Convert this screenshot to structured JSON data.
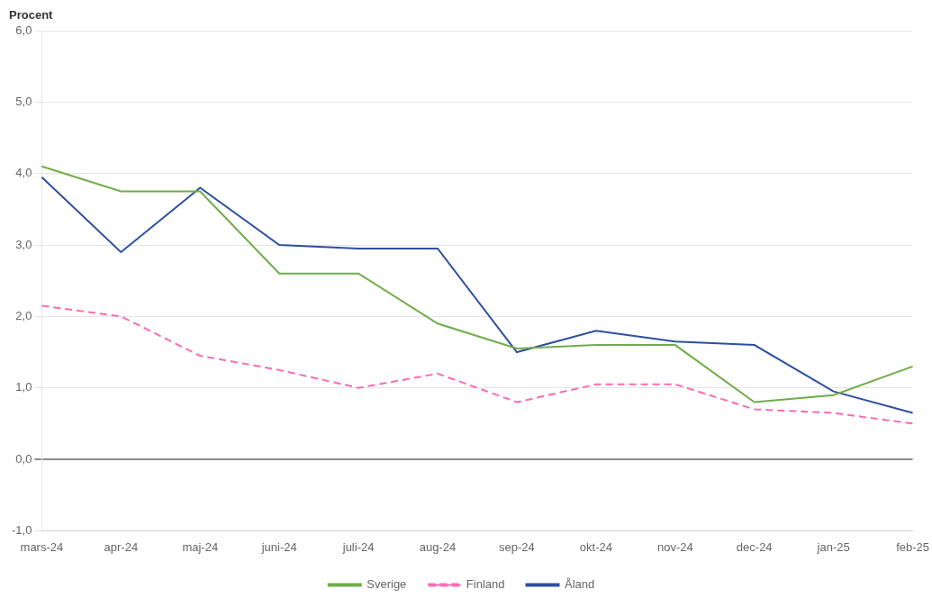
{
  "chart_data": {
    "type": "line",
    "y_label": "Procent",
    "categories": [
      "mars-24",
      "apr-24",
      "maj-24",
      "juni-24",
      "juli-24",
      "aug-24",
      "sep-24",
      "okt-24",
      "nov-24",
      "dec-24",
      "jan-25",
      "feb-25"
    ],
    "series": [
      {
        "name": "Sverige",
        "color": "#70AD47",
        "line_style": "solid",
        "values": [
          4.1,
          3.75,
          3.75,
          2.6,
          2.6,
          1.9,
          1.55,
          1.6,
          1.6,
          0.8,
          0.9,
          1.3
        ]
      },
      {
        "name": "Finland",
        "color": "#FF69B4",
        "line_style": "dashed",
        "values": [
          2.15,
          2.0,
          1.45,
          1.25,
          1.0,
          1.2,
          0.8,
          1.05,
          1.05,
          0.7,
          0.65,
          0.5
        ]
      },
      {
        "name": "Åland",
        "color": "#2E4FA0",
        "line_style": "solid",
        "values": [
          3.95,
          2.9,
          3.8,
          3.0,
          2.95,
          2.95,
          1.5,
          1.8,
          1.65,
          1.6,
          0.95,
          0.65
        ]
      }
    ],
    "marker": "none",
    "ylim": [
      -1.0,
      6.0
    ],
    "yticks": [
      {
        "value": -1.0,
        "label": "-1,0"
      },
      {
        "value": 0.0,
        "label": "0,0"
      },
      {
        "value": 1.0,
        "label": "1,0"
      },
      {
        "value": 2.0,
        "label": "2,0"
      },
      {
        "value": 3.0,
        "label": "3,0"
      },
      {
        "value": 4.0,
        "label": "4,0"
      },
      {
        "value": 5.0,
        "label": "5,0"
      },
      {
        "value": 6.0,
        "label": "6,0"
      }
    ],
    "grid": true,
    "legend": "bottom"
  }
}
